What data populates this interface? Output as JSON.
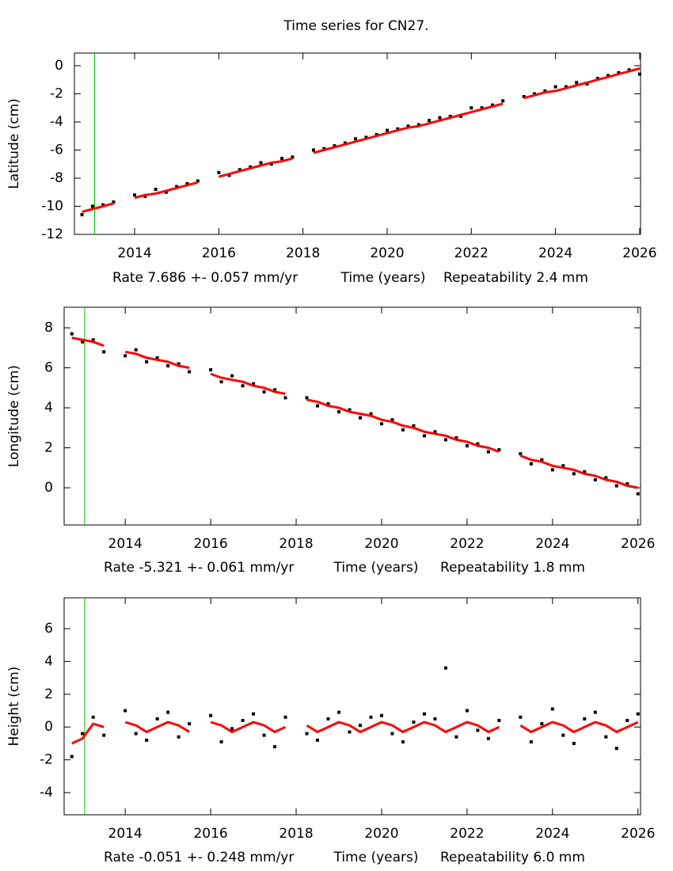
{
  "chart_data": [
    {
      "type": "scatter",
      "title": "Time series for CN27.",
      "ylabel": "Latitude (cm)",
      "rate": "Rate 7.686 +- 0.057 mm/yr",
      "xlabel": "Time (years)",
      "repeatability": "Repeatability 2.4 mm",
      "xlim": [
        2012.57,
        2026.02
      ],
      "ylim": [
        -12,
        0.9
      ],
      "xticks": [
        2014,
        2016,
        2018,
        2020,
        2022,
        2024,
        2026
      ],
      "yticks": [
        0,
        -2,
        -4,
        -6,
        -8,
        -10,
        -12
      ],
      "vline": {
        "x": 2013.05,
        "color": "#00c000"
      },
      "x": [
        2012.75,
        2013,
        2013.25,
        2013.5,
        2013.75,
        2014,
        2014.25,
        2014.5,
        2014.75,
        2015,
        2015.25,
        2015.5,
        2015.75,
        2016,
        2016.25,
        2016.5,
        2016.75,
        2017,
        2017.25,
        2017.5,
        2017.75,
        2018,
        2018.25,
        2018.5,
        2018.75,
        2019,
        2019.25,
        2019.5,
        2019.75,
        2020,
        2020.25,
        2020.5,
        2020.75,
        2021,
        2021.25,
        2021.5,
        2021.75,
        2022,
        2022.25,
        2022.5,
        2022.75,
        2023,
        2023.25,
        2023.5,
        2023.75,
        2024,
        2024.25,
        2024.5,
        2024.75,
        2025,
        2025.25,
        2025.5,
        2025.75,
        2026
      ],
      "series": [
        {
          "color": "#000000",
          "values": [
            -10.6,
            -10.0,
            -9.9,
            -9.7,
            null,
            -9.2,
            -9.3,
            -8.8,
            -9.0,
            -8.6,
            -8.4,
            -8.2,
            null,
            -7.6,
            -7.8,
            -7.4,
            -7.2,
            -6.9,
            -7.0,
            -6.6,
            -6.5,
            null,
            -6.0,
            -5.9,
            -5.7,
            -5.5,
            -5.2,
            -5.1,
            -4.9,
            -4.6,
            -4.5,
            -4.3,
            -4.2,
            -3.9,
            -3.7,
            -3.6,
            -3.6,
            -3.0,
            -3.0,
            -2.8,
            -2.5,
            null,
            -2.2,
            -2.0,
            -1.8,
            -1.5,
            -1.5,
            -1.2,
            -1.3,
            -0.9,
            -0.7,
            -0.5,
            -0.3,
            -0.6
          ]
        },
        {
          "color": "#ff0000",
          "values": [
            -10.4,
            -10.2,
            -10.0,
            -9.8,
            null,
            -9.4,
            -9.2,
            -9.1,
            -8.9,
            -8.7,
            -8.5,
            -8.3,
            null,
            -7.9,
            -7.7,
            -7.5,
            -7.3,
            -7.1,
            -6.9,
            -6.8,
            -6.6,
            null,
            -6.2,
            -6.0,
            -5.8,
            -5.6,
            -5.4,
            -5.2,
            -5.0,
            -4.8,
            -4.6,
            -4.4,
            -4.3,
            -4.1,
            -3.9,
            -3.7,
            -3.5,
            -3.3,
            -3.1,
            -2.9,
            -2.7,
            null,
            -2.3,
            -2.1,
            -1.9,
            -1.8,
            -1.6,
            -1.4,
            -1.2,
            -1.0,
            -0.8,
            -0.6,
            -0.4,
            -0.2
          ]
        }
      ]
    },
    {
      "type": "scatter",
      "ylabel": "Longitude (cm)",
      "rate": "Rate -5.321 +- 0.061 mm/yr",
      "xlabel": "Time (years)",
      "repeatability": "Repeatability 1.8 mm",
      "xlim": [
        2012.57,
        2026.06
      ],
      "ylim": [
        -1.86,
        9.03
      ],
      "xticks": [
        2014,
        2016,
        2018,
        2020,
        2022,
        2024,
        2026
      ],
      "yticks": [
        0,
        2,
        4,
        6,
        8
      ],
      "vline": {
        "x": 2013.05,
        "color": "#00c000"
      },
      "x": [
        2012.75,
        2013,
        2013.25,
        2013.5,
        2013.75,
        2014,
        2014.25,
        2014.5,
        2014.75,
        2015,
        2015.25,
        2015.5,
        2015.75,
        2016,
        2016.25,
        2016.5,
        2016.75,
        2017,
        2017.25,
        2017.5,
        2017.75,
        2018,
        2018.25,
        2018.5,
        2018.75,
        2019,
        2019.25,
        2019.5,
        2019.75,
        2020,
        2020.25,
        2020.5,
        2020.75,
        2021,
        2021.25,
        2021.5,
        2021.75,
        2022,
        2022.25,
        2022.5,
        2022.75,
        2023,
        2023.25,
        2023.5,
        2023.75,
        2024,
        2024.25,
        2024.5,
        2024.75,
        2025,
        2025.25,
        2025.5,
        2025.75,
        2026
      ],
      "series": [
        {
          "color": "#000000",
          "values": [
            7.7,
            7.3,
            7.4,
            6.8,
            null,
            6.6,
            6.9,
            6.3,
            6.5,
            6.1,
            6.2,
            5.8,
            null,
            5.9,
            5.3,
            5.6,
            5.1,
            5.2,
            4.8,
            4.9,
            4.5,
            null,
            4.5,
            4.1,
            4.2,
            3.8,
            3.9,
            3.5,
            3.7,
            3.2,
            3.4,
            2.9,
            3.1,
            2.6,
            2.8,
            2.4,
            2.5,
            2.1,
            2.2,
            1.8,
            1.9,
            null,
            1.7,
            1.2,
            1.4,
            0.9,
            1.1,
            0.7,
            0.8,
            0.4,
            0.5,
            0.1,
            0.2,
            -0.3
          ]
        },
        {
          "color": "#ff0000",
          "values": [
            7.5,
            7.4,
            7.3,
            7.1,
            null,
            6.8,
            6.7,
            6.5,
            6.4,
            6.3,
            6.1,
            6.0,
            null,
            5.7,
            5.5,
            5.4,
            5.3,
            5.1,
            5.0,
            4.8,
            4.7,
            null,
            4.4,
            4.3,
            4.1,
            4.0,
            3.8,
            3.7,
            3.6,
            3.4,
            3.3,
            3.1,
            3.0,
            2.8,
            2.7,
            2.6,
            2.4,
            2.3,
            2.1,
            2.0,
            1.8,
            null,
            1.6,
            1.4,
            1.3,
            1.1,
            1.0,
            0.9,
            0.7,
            0.6,
            0.4,
            0.3,
            0.1,
            0.0
          ]
        }
      ]
    },
    {
      "type": "scatter",
      "ylabel": "Height (cm)",
      "rate": "Rate -0.051 +- 0.248 mm/yr",
      "xlabel": "Time (years)",
      "repeatability": "Repeatability 6.0 mm",
      "xlim": [
        2012.57,
        2026.06
      ],
      "ylim": [
        -5.35,
        7.88
      ],
      "xticks": [
        2014,
        2016,
        2018,
        2020,
        2022,
        2024,
        2026
      ],
      "yticks": [
        -4,
        -2,
        0,
        2,
        4,
        6
      ],
      "vline": {
        "x": 2013.05,
        "color": "#00c000"
      },
      "x": [
        2012.75,
        2013,
        2013.25,
        2013.5,
        2013.75,
        2014,
        2014.25,
        2014.5,
        2014.75,
        2015,
        2015.25,
        2015.5,
        2015.75,
        2016,
        2016.25,
        2016.5,
        2016.75,
        2017,
        2017.25,
        2017.5,
        2017.75,
        2018,
        2018.25,
        2018.5,
        2018.75,
        2019,
        2019.25,
        2019.5,
        2019.75,
        2020,
        2020.25,
        2020.5,
        2020.75,
        2021,
        2021.25,
        2021.5,
        2021.75,
        2022,
        2022.25,
        2022.5,
        2022.75,
        2023,
        2023.25,
        2023.5,
        2023.75,
        2024,
        2024.25,
        2024.5,
        2024.75,
        2025,
        2025.25,
        2025.5,
        2025.75,
        2026
      ],
      "series": [
        {
          "color": "#000000",
          "values": [
            -1.8,
            -0.4,
            0.6,
            -0.5,
            null,
            1.0,
            -0.4,
            -0.8,
            0.5,
            0.9,
            -0.6,
            0.2,
            null,
            0.7,
            -0.9,
            -0.1,
            0.4,
            0.8,
            -0.5,
            -1.2,
            0.6,
            null,
            -0.4,
            -0.8,
            0.5,
            0.9,
            -0.3,
            0.1,
            0.6,
            0.7,
            -0.4,
            -0.9,
            0.3,
            0.8,
            0.5,
            3.6,
            -0.6,
            1.0,
            -0.2,
            -0.7,
            0.4,
            null,
            0.6,
            -0.9,
            0.2,
            1.1,
            -0.5,
            -1.0,
            0.5,
            0.9,
            -0.6,
            -1.3,
            0.4,
            0.8
          ]
        },
        {
          "color": "#ff0000",
          "values": [
            -1.0,
            -0.7,
            0.2,
            0.0,
            null,
            0.3,
            0.1,
            -0.3,
            0.0,
            0.3,
            0.1,
            -0.3,
            null,
            0.3,
            0.1,
            -0.3,
            0.0,
            0.3,
            0.1,
            -0.3,
            0.0,
            null,
            0.1,
            -0.3,
            0.0,
            0.3,
            0.1,
            -0.3,
            0.0,
            0.3,
            0.1,
            -0.3,
            0.0,
            0.3,
            0.1,
            -0.3,
            0.0,
            0.3,
            0.1,
            -0.3,
            0.0,
            null,
            0.1,
            -0.3,
            0.0,
            0.3,
            0.1,
            -0.3,
            0.0,
            0.3,
            0.1,
            -0.3,
            0.0,
            0.3
          ]
        }
      ]
    }
  ]
}
